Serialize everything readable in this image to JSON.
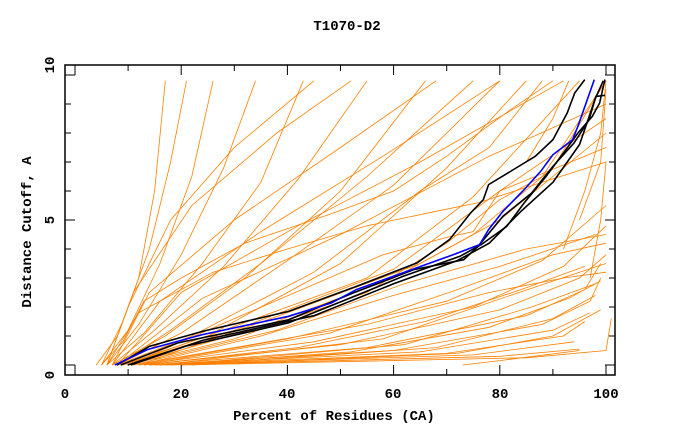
{
  "chart_data": {
    "type": "line",
    "title": "T1070-D2",
    "xlabel": "Percent of Residues (CA)",
    "ylabel": "Distance Cutoff, A",
    "xlim": [
      0,
      100
    ],
    "ylim": [
      0,
      10
    ],
    "x_ticks": [
      "0",
      "20",
      "40",
      "60",
      "80",
      "100"
    ],
    "y_ticks": [
      "0",
      "5",
      "10"
    ],
    "grid": false,
    "legend": "none",
    "colors": {
      "other_models": "#ff8000",
      "highlighted_models": "#000000",
      "selected_model": "#0000ff"
    },
    "series": [
      {
        "group": "highlighted",
        "color": "#0000ff",
        "points": [
          [
            7.5,
            0
          ],
          [
            13.6,
            0.53
          ],
          [
            24,
            1.05
          ],
          [
            40.2,
            1.68
          ],
          [
            48.3,
            2.14
          ],
          [
            53,
            2.6
          ],
          [
            65.1,
            3.4
          ],
          [
            71.2,
            3.8
          ],
          [
            76.2,
            4.15
          ],
          [
            77.9,
            4.67
          ],
          [
            80.6,
            5.3
          ],
          [
            84.6,
            6.05
          ],
          [
            87.7,
            6.68
          ],
          [
            90,
            7.25
          ],
          [
            93.7,
            7.77
          ],
          [
            94.7,
            8.23
          ],
          [
            97.8,
            9.84
          ]
        ]
      },
      {
        "group": "highlighted",
        "color": "#000000",
        "points": [
          [
            7.9,
            0
          ],
          [
            14,
            0.64
          ],
          [
            24,
            1.16
          ],
          [
            40.2,
            1.85
          ],
          [
            53,
            2.71
          ],
          [
            64.4,
            3.52
          ],
          [
            70.5,
            4.32
          ],
          [
            74.5,
            5.24
          ],
          [
            76.9,
            5.7
          ],
          [
            77.9,
            6.22
          ],
          [
            82.6,
            6.74
          ],
          [
            86.7,
            7.2
          ],
          [
            90,
            7.77
          ],
          [
            92.7,
            8.69
          ],
          [
            94.1,
            9.38
          ],
          [
            96,
            9.84
          ]
        ]
      },
      {
        "group": "highlighted",
        "color": "#000000",
        "points": [
          [
            9.9,
            0
          ],
          [
            20.7,
            0.64
          ],
          [
            40.2,
            1.45
          ],
          [
            51,
            2.25
          ],
          [
            61.8,
            3.06
          ],
          [
            72.5,
            3.75
          ],
          [
            76.5,
            4.15
          ],
          [
            81.3,
            4.78
          ],
          [
            84.6,
            5.59
          ],
          [
            88.7,
            6.5
          ],
          [
            92,
            7.31
          ],
          [
            94.7,
            8
          ],
          [
            97.4,
            8.57
          ],
          [
            98.8,
            9.03
          ],
          [
            99.8,
            9.84
          ]
        ]
      },
      {
        "group": "highlighted",
        "color": "#000000",
        "points": [
          [
            8.6,
            0
          ],
          [
            19.3,
            0.76
          ],
          [
            40.2,
            1.56
          ],
          [
            52.3,
            2.48
          ],
          [
            63.8,
            3.29
          ],
          [
            73.2,
            3.63
          ],
          [
            75.9,
            4.09
          ],
          [
            80.6,
            5.13
          ],
          [
            86,
            5.93
          ],
          [
            90,
            6.85
          ],
          [
            94,
            7.66
          ],
          [
            96.8,
            8.46
          ],
          [
            98.1,
            9.26
          ],
          [
            99.8,
            9.3
          ]
        ]
      },
      {
        "group": "highlighted",
        "color": "#000000",
        "points": [
          [
            10.5,
            0
          ],
          [
            24,
            0.85
          ],
          [
            45,
            1.7
          ],
          [
            60,
            2.8
          ],
          [
            72,
            3.6
          ],
          [
            78,
            4.2
          ],
          [
            84,
            5.3
          ],
          [
            90,
            6.3
          ],
          [
            95,
            7.6
          ],
          [
            98,
            9.2
          ],
          [
            99.5,
            9.8
          ]
        ]
      }
    ],
    "other_series": [
      [
        [
          4,
          0
        ],
        [
          8,
          1
        ],
        [
          12,
          3
        ],
        [
          15,
          6
        ],
        [
          17,
          9.8
        ]
      ],
      [
        [
          5,
          0
        ],
        [
          9,
          1.5
        ],
        [
          14,
          4
        ],
        [
          18,
          7
        ],
        [
          21,
          9.8
        ]
      ],
      [
        [
          5,
          0
        ],
        [
          10,
          1.2
        ],
        [
          16,
          3.5
        ],
        [
          22,
          6.5
        ],
        [
          26,
          9.8
        ]
      ],
      [
        [
          6,
          0
        ],
        [
          12,
          1.4
        ],
        [
          20,
          3.8
        ],
        [
          28,
          6.8
        ],
        [
          34,
          9.8
        ]
      ],
      [
        [
          6,
          0
        ],
        [
          13,
          1.1
        ],
        [
          24,
          3.5
        ],
        [
          35,
          6.3
        ],
        [
          43,
          9.8
        ]
      ],
      [
        [
          7,
          0
        ],
        [
          15,
          1.2
        ],
        [
          28,
          3.4
        ],
        [
          42,
          6.4
        ],
        [
          55,
          9.8
        ]
      ],
      [
        [
          7,
          0
        ],
        [
          17,
          1.0
        ],
        [
          32,
          3.0
        ],
        [
          50,
          6.0
        ],
        [
          66,
          9.8
        ]
      ],
      [
        [
          8,
          0
        ],
        [
          18,
          1.2
        ],
        [
          35,
          3.5
        ],
        [
          55,
          6.5
        ],
        [
          75,
          9.8
        ]
      ],
      [
        [
          8,
          0
        ],
        [
          20,
          1.1
        ],
        [
          40,
          3.6
        ],
        [
          60,
          6.2
        ],
        [
          80,
          9.8
        ]
      ],
      [
        [
          8,
          0
        ],
        [
          22,
          1.0
        ],
        [
          45,
          3.2
        ],
        [
          65,
          6.0
        ],
        [
          78,
          7.5
        ],
        [
          88,
          9.8
        ]
      ],
      [
        [
          9,
          0
        ],
        [
          25,
          1.0
        ],
        [
          50,
          3.5
        ],
        [
          70,
          6.8
        ],
        [
          85,
          9.8
        ]
      ],
      [
        [
          9,
          0
        ],
        [
          28,
          1.2
        ],
        [
          55,
          3.0
        ],
        [
          75,
          5.8
        ],
        [
          95,
          9.8
        ]
      ],
      [
        [
          9,
          0
        ],
        [
          30,
          1.2
        ],
        [
          60,
          3.3
        ],
        [
          80,
          6.0
        ],
        [
          100,
          8.5
        ]
      ],
      [
        [
          10,
          0
        ],
        [
          30,
          0.9
        ],
        [
          55,
          2.5
        ],
        [
          70,
          4.2
        ],
        [
          80,
          5.7
        ],
        [
          88,
          6.5
        ],
        [
          100,
          9.8
        ]
      ],
      [
        [
          6,
          0
        ],
        [
          10,
          2
        ],
        [
          18,
          5
        ],
        [
          30,
          7.5
        ],
        [
          45,
          9.8
        ]
      ],
      [
        [
          6,
          0
        ],
        [
          11,
          2.5
        ],
        [
          22,
          5.5
        ],
        [
          38,
          8
        ],
        [
          52,
          9.8
        ]
      ],
      [
        [
          7,
          0
        ],
        [
          14,
          2.5
        ],
        [
          30,
          5
        ],
        [
          50,
          7.5
        ],
        [
          68,
          9.8
        ]
      ],
      [
        [
          7,
          0
        ],
        [
          16,
          2.2
        ],
        [
          35,
          4.6
        ],
        [
          58,
          7.2
        ],
        [
          80,
          9.8
        ]
      ],
      [
        [
          8,
          0
        ],
        [
          20,
          2.5
        ],
        [
          42,
          4.8
        ],
        [
          65,
          7
        ],
        [
          92,
          9.8
        ]
      ],
      [
        [
          8,
          0
        ],
        [
          24,
          2.3
        ],
        [
          50,
          4.5
        ],
        [
          78,
          7.2
        ],
        [
          100,
          9.0
        ]
      ],
      [
        [
          10,
          0
        ],
        [
          30,
          1.6
        ],
        [
          58,
          3.8
        ],
        [
          70,
          4.4
        ],
        [
          75,
          4.6
        ],
        [
          80,
          6.0
        ],
        [
          100,
          7.5
        ]
      ],
      [
        [
          12,
          0
        ],
        [
          40,
          1.8
        ],
        [
          65,
          3.5
        ],
        [
          80,
          5.0
        ],
        [
          100,
          8
        ]
      ],
      [
        [
          10,
          0
        ],
        [
          35,
          1.3
        ],
        [
          60,
          3.0
        ],
        [
          75,
          4.5
        ],
        [
          90,
          6.8
        ],
        [
          100,
          9.8
        ]
      ],
      [
        [
          5,
          0
        ],
        [
          9,
          0.8
        ],
        [
          13,
          2.2
        ],
        [
          20,
          3.0
        ],
        [
          32,
          4.2
        ],
        [
          48,
          5.2
        ],
        [
          60,
          6.0
        ],
        [
          70,
          7.2
        ],
        [
          82,
          8.8
        ],
        [
          90,
          9.8
        ]
      ],
      [
        [
          6,
          0
        ],
        [
          12,
          1.8
        ],
        [
          26,
          3.2
        ],
        [
          40,
          4.0
        ],
        [
          55,
          4.8
        ],
        [
          68,
          5.3
        ],
        [
          76,
          5.6
        ],
        [
          88,
          6.3
        ],
        [
          100,
          7.0
        ]
      ],
      [
        [
          12,
          0
        ],
        [
          40,
          0.9
        ],
        [
          70,
          2.2
        ],
        [
          88,
          3.6
        ],
        [
          100,
          5.5
        ]
      ],
      [
        [
          12,
          0
        ],
        [
          45,
          0.8
        ],
        [
          75,
          2.0
        ],
        [
          92,
          3.4
        ],
        [
          100,
          4.8
        ]
      ],
      [
        [
          13,
          0
        ],
        [
          50,
          0.7
        ],
        [
          80,
          1.9
        ],
        [
          95,
          3.0
        ],
        [
          100,
          3.8
        ]
      ],
      [
        [
          14,
          0
        ],
        [
          55,
          0.6
        ],
        [
          85,
          1.7
        ],
        [
          96,
          2.6
        ],
        [
          99,
          3.5
        ]
      ],
      [
        [
          14,
          0
        ],
        [
          60,
          0.5
        ],
        [
          88,
          1.4
        ],
        [
          97,
          2.2
        ],
        [
          99,
          3.0
        ]
      ],
      [
        [
          15,
          0
        ],
        [
          65,
          0.45
        ],
        [
          90,
          1.2
        ],
        [
          97,
          1.8
        ]
      ],
      [
        [
          15,
          0
        ],
        [
          70,
          0.4
        ],
        [
          92,
          1.0
        ],
        [
          96,
          1.5
        ]
      ],
      [
        [
          16,
          0
        ],
        [
          75,
          0.35
        ],
        [
          94,
          0.8
        ]
      ],
      [
        [
          18,
          0
        ],
        [
          80,
          0.3
        ],
        [
          95,
          0.55
        ]
      ],
      [
        [
          20,
          0
        ],
        [
          85,
          0.25
        ],
        [
          100,
          0.5
        ],
        [
          101,
          1.6
        ]
      ],
      [
        [
          73,
          0
        ],
        [
          80,
          0.15
        ],
        [
          95,
          0.5
        ]
      ],
      [
        [
          12,
          0
        ],
        [
          35,
          1.0
        ],
        [
          60,
          2.4
        ],
        [
          80,
          3.4
        ],
        [
          98,
          4.5
        ]
      ],
      [
        [
          11,
          0
        ],
        [
          38,
          1.2
        ],
        [
          62,
          2.8
        ],
        [
          85,
          4.0
        ],
        [
          100,
          4.5
        ]
      ],
      [
        [
          13,
          0
        ],
        [
          48,
          1.1
        ],
        [
          72,
          2.6
        ],
        [
          90,
          3.8
        ],
        [
          100,
          4.2
        ]
      ],
      [
        [
          16,
          0
        ],
        [
          58,
          0.9
        ],
        [
          82,
          2.4
        ],
        [
          95,
          3.2
        ],
        [
          100,
          3.5
        ]
      ],
      [
        [
          18,
          0
        ],
        [
          62,
          0.7
        ],
        [
          86,
          2.0
        ],
        [
          98,
          2.8
        ]
      ],
      [
        [
          20,
          0
        ],
        [
          68,
          0.6
        ],
        [
          90,
          1.6
        ],
        [
          98,
          2.4
        ]
      ],
      [
        [
          11,
          0
        ],
        [
          30,
          0.6
        ],
        [
          55,
          1.4
        ],
        [
          78,
          2.5
        ],
        [
          92,
          3.0
        ],
        [
          100,
          3.2
        ]
      ],
      [
        [
          13,
          0
        ],
        [
          42,
          0.6
        ],
        [
          66,
          1.5
        ],
        [
          84,
          2.6
        ],
        [
          96,
          3.4
        ]
      ],
      [
        [
          17,
          0
        ],
        [
          52,
          0.45
        ],
        [
          78,
          1.3
        ],
        [
          93,
          2.3
        ],
        [
          99,
          2.9
        ]
      ],
      [
        [
          22,
          0
        ],
        [
          72,
          0.4
        ],
        [
          90,
          1.0
        ],
        [
          99,
          1.9
        ]
      ],
      [
        [
          92,
          4
        ],
        [
          96,
          6
        ],
        [
          99,
          8
        ],
        [
          100,
          9.8
        ]
      ],
      [
        [
          95,
          5
        ],
        [
          99,
          7
        ],
        [
          100,
          9.5
        ]
      ],
      [
        [
          85,
          7
        ],
        [
          90,
          8.5
        ],
        [
          93,
          9.8
        ]
      ],
      [
        [
          97,
          3.0
        ],
        [
          99,
          5.0
        ],
        [
          100,
          7.0
        ]
      ]
    ]
  }
}
